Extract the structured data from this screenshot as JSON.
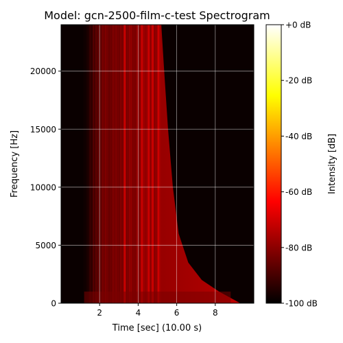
{
  "chart_data": {
    "type": "heatmap",
    "title": "Model: gcn-2500-film-c-test Spectrogram",
    "xlabel": "Time [sec] (10.00 s)",
    "ylabel": "Frequency [Hz]",
    "xlim": [
      0,
      10
    ],
    "ylim": [
      0,
      24000
    ],
    "x_ticks": [
      2,
      4,
      6,
      8
    ],
    "y_ticks": [
      0,
      5000,
      10000,
      15000,
      20000
    ],
    "grid": true,
    "colormap": "hot",
    "colorbar": {
      "label": "Intensity [dB]",
      "range_db": [
        -100,
        0
      ],
      "ticks": [
        "+0 dB",
        "-20 dB",
        "-40 dB",
        "-60 dB",
        "-80 dB",
        "-100 dB"
      ],
      "tick_values": [
        0,
        -20,
        -40,
        -60,
        -80,
        -100
      ]
    },
    "energy_region": {
      "onset_sec": 1.2,
      "high_freq_cutoff_sec": 5.2,
      "decay_tail_end_sec": 9.3,
      "low_freq_floor_hz": 1000,
      "peak_level_db": -60,
      "background_level_db": -100
    },
    "bright_bands_sec": [
      3.3,
      4.2,
      4.55,
      4.75,
      5.05
    ],
    "decay_envelope": [
      {
        "time_sec": 5.2,
        "freq_hz": 24000
      },
      {
        "time_sec": 5.35,
        "freq_hz": 20000
      },
      {
        "time_sec": 5.55,
        "freq_hz": 15000
      },
      {
        "time_sec": 5.8,
        "freq_hz": 10000
      },
      {
        "time_sec": 6.1,
        "freq_hz": 6000
      },
      {
        "time_sec": 6.6,
        "freq_hz": 3500
      },
      {
        "time_sec": 7.3,
        "freq_hz": 2000
      },
      {
        "time_sec": 8.2,
        "freq_hz": 1000
      },
      {
        "time_sec": 9.3,
        "freq_hz": 0
      }
    ]
  }
}
